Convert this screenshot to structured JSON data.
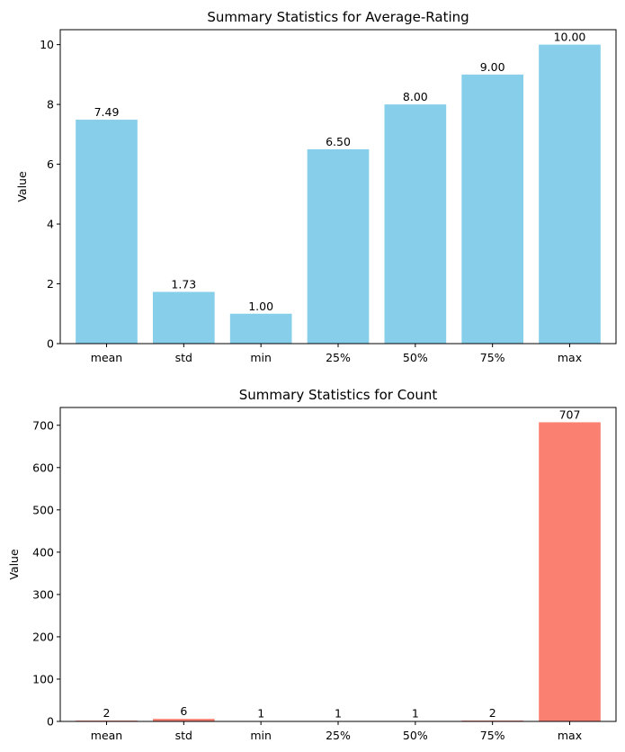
{
  "chart_data": [
    {
      "type": "bar",
      "title": "Summary Statistics for Average-Rating",
      "xlabel": "",
      "ylabel": "Value",
      "categories": [
        "mean",
        "std",
        "min",
        "25%",
        "50%",
        "75%",
        "max"
      ],
      "values": [
        7.49,
        1.73,
        1.0,
        6.5,
        8.0,
        9.0,
        10.0
      ],
      "data_labels": [
        "7.49",
        "1.73",
        "1.00",
        "6.50",
        "8.00",
        "9.00",
        "10.00"
      ],
      "ylim": [
        0,
        10.5
      ],
      "yticks": [
        0,
        2,
        4,
        6,
        8,
        10
      ],
      "bar_color": "#87ceeb",
      "grid": false
    },
    {
      "type": "bar",
      "title": "Summary Statistics for Count",
      "xlabel": "",
      "ylabel": "Value",
      "categories": [
        "mean",
        "std",
        "min",
        "25%",
        "50%",
        "75%",
        "max"
      ],
      "values": [
        2,
        6,
        1,
        1,
        1,
        2,
        707
      ],
      "data_labels": [
        "2",
        "6",
        "1",
        "1",
        "1",
        "2",
        "707"
      ],
      "ylim": [
        0,
        742
      ],
      "yticks": [
        0,
        100,
        200,
        300,
        400,
        500,
        600,
        700
      ],
      "bar_color": "#fa8072",
      "grid": false
    }
  ]
}
